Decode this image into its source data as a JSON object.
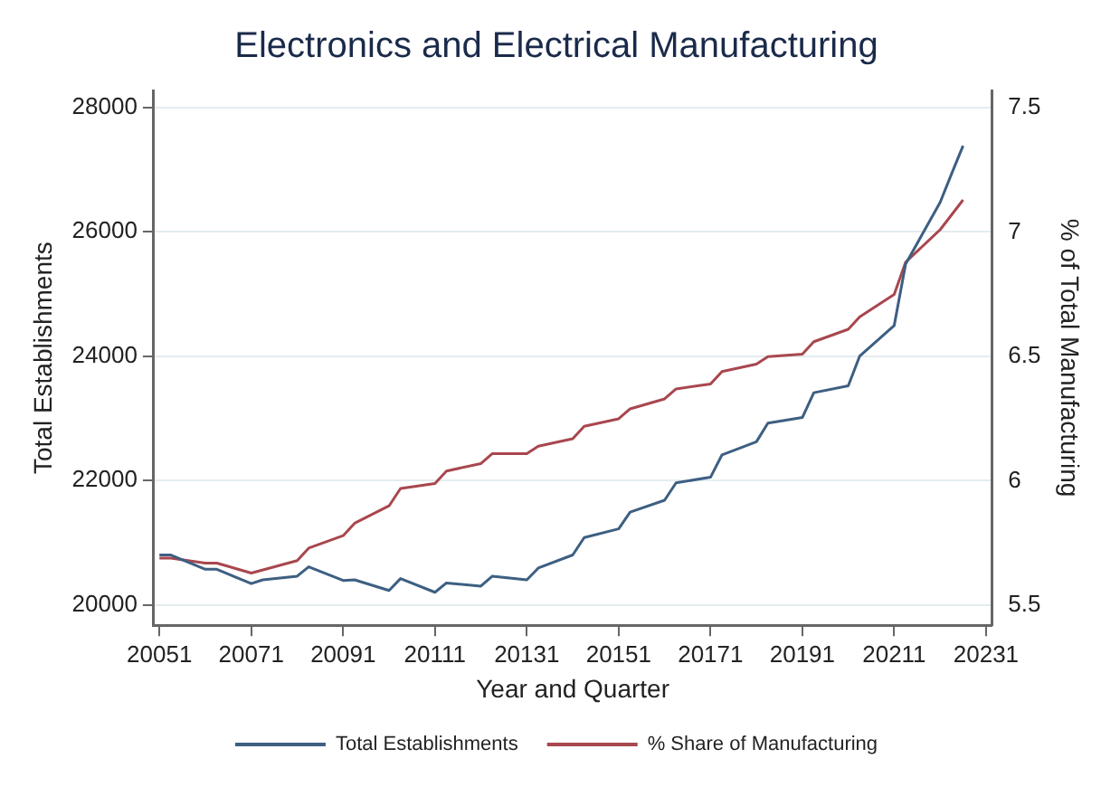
{
  "chart_data": {
    "type": "line",
    "title": "Electronics and Electrical Manufacturing",
    "xlabel": "Year and Quarter",
    "ylabel": "Total Establishments",
    "y2label": "% of Total Manufacturing",
    "categories": [
      "20051",
      null,
      null,
      null,
      null,
      null,
      null,
      null,
      "20071",
      null,
      null,
      null,
      null,
      null,
      null,
      null,
      "20091",
      null,
      null,
      null,
      null,
      null,
      null,
      null,
      "20111",
      null,
      null,
      null,
      null,
      null,
      null,
      null,
      "20131",
      null,
      null,
      null,
      null,
      null,
      null,
      null,
      "20151",
      null,
      null,
      null,
      null,
      null,
      null,
      null,
      "20171",
      null,
      null,
      null,
      null,
      null,
      null,
      null,
      "20191",
      null,
      null,
      null,
      null,
      null,
      null,
      null,
      "20211",
      null,
      null,
      null,
      null,
      null,
      null,
      null,
      "20231"
    ],
    "ylim": [
      19670,
      28270
    ],
    "yticks": [
      20000,
      22000,
      24000,
      26000,
      28000
    ],
    "y2lim": [
      5.42,
      7.57
    ],
    "y2ticks": [
      5.5,
      6,
      6.5,
      7,
      7.5
    ],
    "grid": "y",
    "legend": "bottom",
    "marker": "none",
    "line_style": "solid",
    "series": [
      {
        "name": "Total Establishments",
        "color": "#3d5f82",
        "values": [
          20800,
          20800,
          null,
          null,
          20570,
          20570,
          null,
          null,
          20340,
          20400,
          null,
          null,
          20460,
          20610,
          null,
          null,
          20390,
          20400,
          null,
          null,
          20230,
          20420,
          null,
          null,
          20200,
          20350,
          null,
          null,
          20300,
          20460,
          null,
          null,
          20400,
          20590,
          null,
          null,
          20800,
          21080,
          null,
          null,
          21220,
          21490,
          null,
          null,
          21680,
          21960,
          null,
          null,
          22050,
          22410,
          null,
          null,
          22620,
          22920,
          null,
          null,
          23010,
          23410,
          null,
          null,
          23520,
          24000,
          null,
          null,
          24490,
          25480,
          null,
          null,
          26470,
          26930,
          27380,
          null,
          null
        ]
      },
      {
        "name": "% Share of Manufacturing",
        "color": "#a8474e",
        "axis": "y2",
        "values": [
          5.69,
          5.69,
          null,
          null,
          5.67,
          5.67,
          null,
          null,
          5.63,
          null,
          null,
          null,
          5.68,
          5.73,
          null,
          null,
          5.78,
          5.83,
          null,
          null,
          5.9,
          5.97,
          null,
          null,
          5.99,
          6.04,
          null,
          null,
          6.07,
          6.11,
          null,
          null,
          6.11,
          6.14,
          null,
          null,
          6.17,
          6.22,
          null,
          null,
          6.25,
          6.29,
          null,
          null,
          6.33,
          6.37,
          null,
          null,
          6.39,
          6.44,
          null,
          null,
          6.47,
          6.5,
          null,
          null,
          6.51,
          6.56,
          null,
          null,
          6.61,
          6.66,
          null,
          null,
          6.75,
          6.88,
          null,
          null,
          7.01,
          null,
          7.13,
          null,
          null
        ]
      }
    ]
  }
}
